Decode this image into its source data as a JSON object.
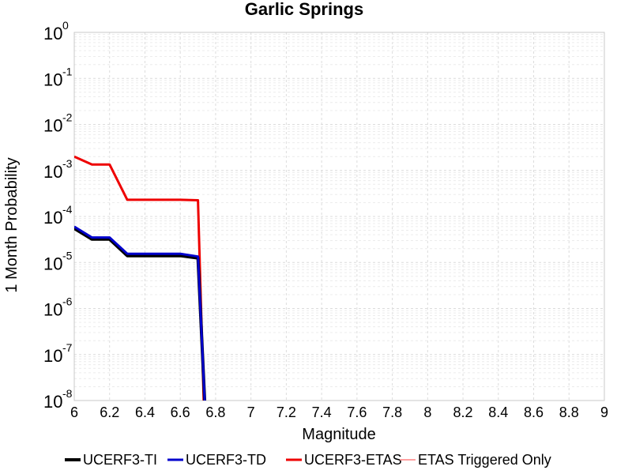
{
  "chart_data": {
    "type": "line",
    "title": "Garlic Springs",
    "xlabel": "Magnitude",
    "ylabel": "1 Month Probability",
    "xlim": [
      6,
      9
    ],
    "ylim": [
      1e-08,
      1
    ],
    "yscale": "log",
    "grid": true,
    "legend_position": "bottom",
    "x_ticks": [
      "6",
      "6.2",
      "6.4",
      "6.6",
      "6.8",
      "7",
      "7.2",
      "7.4",
      "7.6",
      "7.8",
      "8",
      "8.2",
      "8.4",
      "8.6",
      "8.8",
      "9"
    ],
    "y_ticks": [
      {
        "base": "10",
        "exp": "-8",
        "value": 1e-08
      },
      {
        "base": "10",
        "exp": "-7",
        "value": 1e-07
      },
      {
        "base": "10",
        "exp": "-6",
        "value": 1e-06
      },
      {
        "base": "10",
        "exp": "-5",
        "value": 1e-05
      },
      {
        "base": "10",
        "exp": "-4",
        "value": 0.0001
      },
      {
        "base": "10",
        "exp": "-3",
        "value": 0.001
      },
      {
        "base": "10",
        "exp": "-2",
        "value": 0.01
      },
      {
        "base": "10",
        "exp": "-1",
        "value": 0.1
      },
      {
        "base": "10",
        "exp": "0",
        "value": 1
      }
    ],
    "series": [
      {
        "name": "UCERF3-TI",
        "color": "#000000",
        "width": 4,
        "x": [
          6.0,
          6.1,
          6.2,
          6.3,
          6.4,
          6.5,
          6.6,
          6.7,
          6.75
        ],
        "y": [
          5.5e-05,
          3.2e-05,
          3.2e-05,
          1.4e-05,
          1.4e-05,
          1.4e-05,
          1.4e-05,
          1.25e-05,
          1e-09
        ]
      },
      {
        "name": "UCERF3-TD",
        "color": "#0000cc",
        "width": 3,
        "x": [
          6.0,
          6.1,
          6.2,
          6.3,
          6.4,
          6.5,
          6.6,
          6.7,
          6.75
        ],
        "y": [
          6e-05,
          3.5e-05,
          3.5e-05,
          1.55e-05,
          1.55e-05,
          1.55e-05,
          1.55e-05,
          1.35e-05,
          1e-09
        ]
      },
      {
        "name": "UCERF3-ETAS",
        "color": "#ee0000",
        "width": 3,
        "x": [
          6.0,
          6.1,
          6.2,
          6.3,
          6.4,
          6.5,
          6.6,
          6.7,
          6.74
        ],
        "y": [
          0.002,
          0.00135,
          0.00135,
          0.00023,
          0.00023,
          0.00023,
          0.00023,
          0.000225,
          1e-09
        ]
      },
      {
        "name": "ETAS Triggered Only",
        "color": "#ff8080",
        "width": 1,
        "x": [],
        "y": []
      }
    ]
  }
}
